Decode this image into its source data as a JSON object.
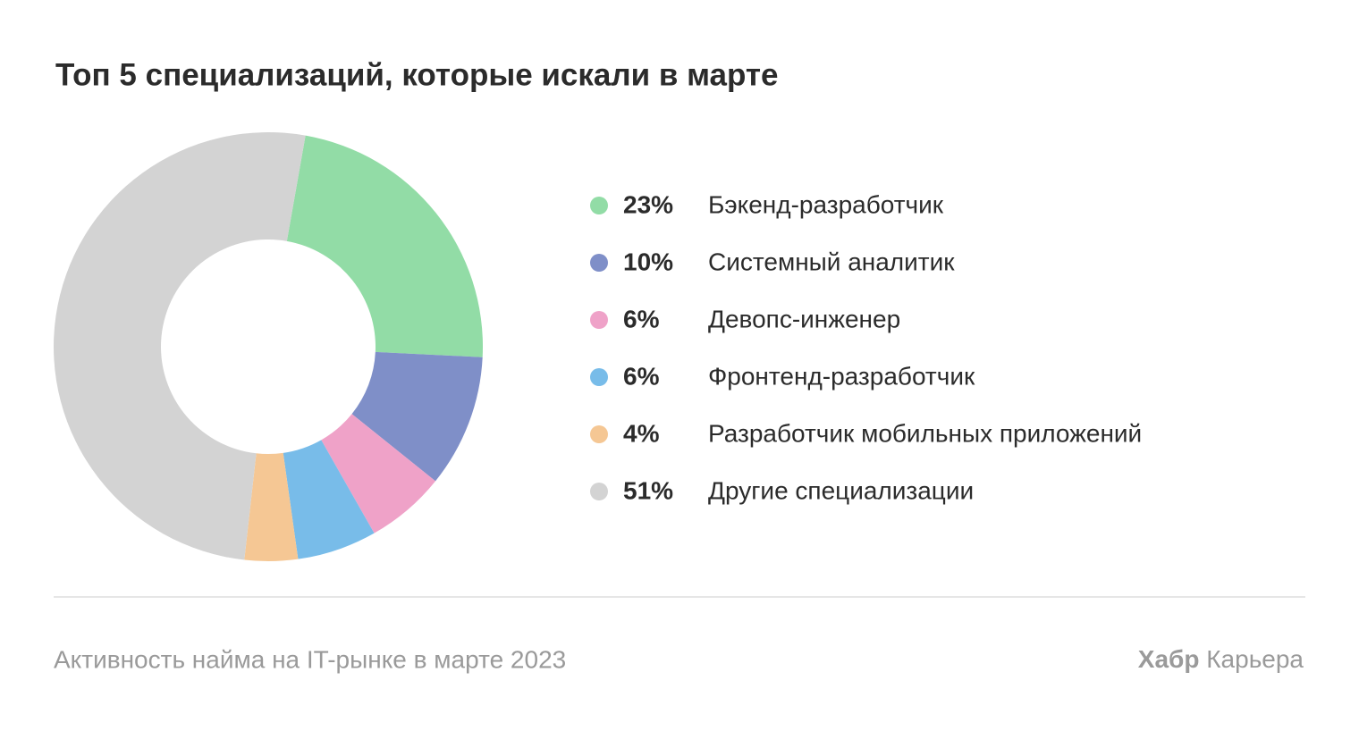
{
  "chart_data": {
    "type": "donut",
    "title": "Топ 5 специализаций, которые искали в марте",
    "categories": [
      "Бэкенд-разработчик",
      "Системный аналитик",
      "Девопс-инженер",
      "Фронтенд-разработчик",
      "Разработчик мобильных приложений",
      "Другие специализации"
    ],
    "values": [
      23,
      10,
      6,
      6,
      4,
      51
    ],
    "value_labels": [
      "23%",
      "10%",
      "6%",
      "6%",
      "4%",
      "51%"
    ],
    "colors": [
      "#92dca6",
      "#7f8fc8",
      "#efa2c8",
      "#78bce9",
      "#f5c794",
      "#d3d3d3"
    ],
    "source": "Активность найма на IT-рынке в марте 2023",
    "brand": [
      "Хабр",
      "Карьера"
    ]
  }
}
